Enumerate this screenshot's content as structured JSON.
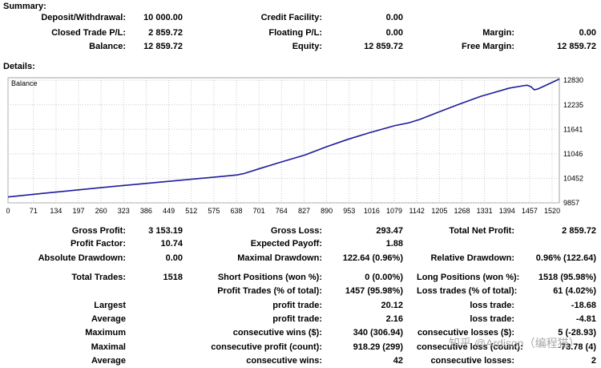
{
  "summary": {
    "heading": "Summary:",
    "rows": [
      {
        "l1": "Deposit/Withdrawal:",
        "v1": "10 000.00",
        "l2": "Credit Facility:",
        "v2": "0.00",
        "l3": "",
        "v3": ""
      },
      {
        "l1": "Closed Trade P/L:",
        "v1": "2 859.72",
        "l2": "Floating P/L:",
        "v2": "0.00",
        "l3": "Margin:",
        "v3": "0.00"
      },
      {
        "l1": "Balance:",
        "v1": "12 859.72",
        "l2": "Equity:",
        "v2": "12 859.72",
        "l3": "Free Margin:",
        "v3": "12 859.72"
      }
    ]
  },
  "details": {
    "heading": "Details:",
    "rows": [
      {
        "l1": "Gross Profit:",
        "v1": "3 153.19",
        "l2": "Gross Loss:",
        "v2": "293.47",
        "l3": "Total Net Profit:",
        "v3": "2 859.72"
      },
      {
        "l1": "Profit Factor:",
        "v1": "10.74",
        "l2": "Expected Payoff:",
        "v2": "1.88",
        "l3": "",
        "v3": ""
      },
      {
        "l1": "Absolute Drawdown:",
        "v1": "0.00",
        "l2": "Maximal Drawdown:",
        "v2": "122.64 (0.96%)",
        "l3": "Relative Drawdown:",
        "v3": "0.96% (122.64)"
      },
      {
        "l1": "Total Trades:",
        "v1": "1518",
        "l2": "Short Positions (won %):",
        "v2": "0 (0.00%)",
        "l3": "Long Positions (won %):",
        "v3": "1518 (95.98%)"
      },
      {
        "l1": "",
        "v1": "",
        "l2": "Profit Trades (% of total):",
        "v2": "1457 (95.98%)",
        "l3": "Loss trades (% of total):",
        "v3": "61 (4.02%)"
      },
      {
        "l1": "Largest",
        "v1": "",
        "l2": "profit trade:",
        "v2": "20.12",
        "l3": "loss trade:",
        "v3": "-18.68"
      },
      {
        "l1": "Average",
        "v1": "",
        "l2": "profit trade:",
        "v2": "2.16",
        "l3": "loss trade:",
        "v3": "-4.81"
      },
      {
        "l1": "Maximum",
        "v1": "",
        "l2": "consecutive wins ($):",
        "v2": "340 (306.94)",
        "l3": "consecutive losses ($):",
        "v3": "5 (-28.93)"
      },
      {
        "l1": "Maximal",
        "v1": "",
        "l2": "consecutive profit (count):",
        "v2": "918.29 (299)",
        "l3": "consecutive loss (count):",
        "v3": "-73.78 (4)"
      },
      {
        "l1": "Average",
        "v1": "",
        "l2": "consecutive wins:",
        "v2": "42",
        "l3": "consecutive losses:",
        "v3": "2"
      }
    ]
  },
  "chart_data": {
    "type": "line",
    "legend": "Balance",
    "x_ticks": [
      0,
      71,
      134,
      197,
      260,
      323,
      386,
      449,
      512,
      575,
      638,
      701,
      764,
      827,
      890,
      953,
      1016,
      1079,
      1142,
      1205,
      1268,
      1331,
      1394,
      1457,
      1520
    ],
    "y_ticks": [
      9857,
      10452,
      11046,
      11641,
      12235,
      12830
    ],
    "xlim": [
      0,
      1540
    ],
    "ylim": [
      9857,
      12892
    ],
    "series": [
      {
        "name": "Balance",
        "x": [
          0,
          100,
          200,
          300,
          400,
          500,
          600,
          640,
          660,
          700,
          760,
          830,
          890,
          950,
          1010,
          1080,
          1120,
          1150,
          1200,
          1260,
          1320,
          1400,
          1440,
          1450,
          1460,
          1470,
          1480,
          1500,
          1540
        ],
        "y": [
          10000,
          10090,
          10175,
          10260,
          10340,
          10420,
          10500,
          10535,
          10570,
          10680,
          10840,
          11020,
          11220,
          11400,
          11560,
          11730,
          11800,
          11880,
          12050,
          12250,
          12440,
          12640,
          12700,
          12710,
          12680,
          12600,
          12620,
          12700,
          12860
        ]
      }
    ],
    "colors": {
      "line": "#1c1c9c",
      "grid": "#c8c8c8",
      "frame": "#a0a0a0"
    }
  },
  "watermark": "知乎 @Ardison（编程猫）"
}
